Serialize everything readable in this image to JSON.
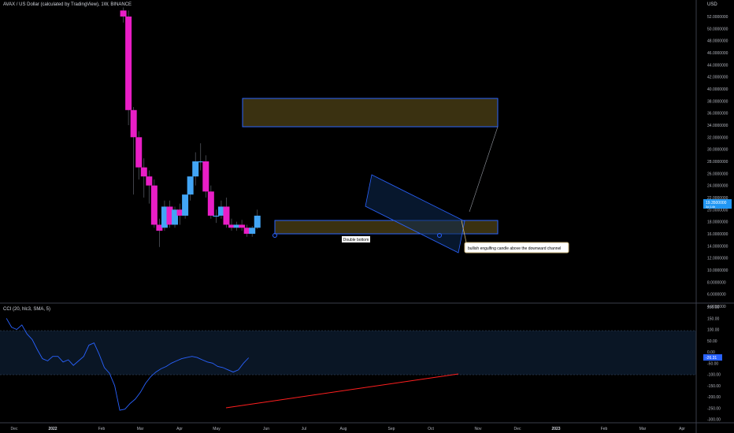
{
  "header": {
    "title": "AVAX / US Dollar (calculated by TradingView), 1W, BINANCE",
    "unit": "USD"
  },
  "indicator": {
    "title": "CCI (20, hlc3, SMA, 5)"
  },
  "price_axis": {
    "ticks": [
      "52.0000000",
      "50.0000000",
      "48.0000000",
      "46.0000000",
      "44.0000000",
      "42.0000000",
      "40.0000000",
      "38.0000000",
      "36.0000000",
      "34.0000000",
      "32.0000000",
      "30.0000000",
      "28.0000000",
      "26.0000000",
      "24.0000000",
      "22.0000000",
      "20.0000000",
      "18.0000000",
      "16.0000000",
      "14.0000000",
      "12.0000000",
      "10.0000000",
      "8.0000000",
      "6.0000000",
      "4.0000000"
    ],
    "last_price": "19.3500000",
    "last_price_sub": "3d 14h"
  },
  "cci_axis": {
    "ticks": [
      "200.00",
      "150.00",
      "100.00",
      "50.00",
      "0.00",
      "-50.00",
      "-100.00",
      "-150.00",
      "-200.00",
      "-250.00",
      "-300.00"
    ],
    "current": "-26.31"
  },
  "time_axis": {
    "labels": [
      "Dec",
      "2022",
      "Feb",
      "Mar",
      "Apr",
      "May",
      "Jun",
      "Jul",
      "Aug",
      "Sep",
      "Oct",
      "Nov",
      "Dec",
      "2023",
      "Feb",
      "Mar",
      "Apr"
    ]
  },
  "annotations": {
    "double_bottom": "Double bottom",
    "engulfing_note": "bullish engulfing candle above the downward channel"
  },
  "colors": {
    "bull": "#42a5f5",
    "bear": "#e91ec6",
    "zone_fill": "#3a3111",
    "zone_border": "#2962ff",
    "cci_line": "#2962ff",
    "divergence": "#ff1f1f",
    "price_badge": "#2196f3"
  },
  "chart_data": [
    {
      "type": "candlestick",
      "title": "AVAX / US Dollar (calculated by TradingView), 1W, BINANCE",
      "ylabel": "USD",
      "y_scale": "linear",
      "ylim": [
        2.5,
        53.0
      ],
      "grid": false,
      "x": [
        "2022-04-25",
        "2022-05-02",
        "2022-05-09",
        "2022-05-16",
        "2022-05-23",
        "2022-05-30",
        "2022-06-06",
        "2022-06-13",
        "2022-06-20",
        "2022-06-27",
        "2022-07-04",
        "2022-07-11",
        "2022-07-18",
        "2022-07-25",
        "2022-08-01",
        "2022-08-08",
        "2022-08-15",
        "2022-08-22",
        "2022-08-29",
        "2022-09-05",
        "2022-09-12",
        "2022-09-19",
        "2022-09-26",
        "2022-10-03",
        "2022-10-10",
        "2022-10-17",
        "2022-10-24"
      ],
      "candles": [
        {
          "o": 53.0,
          "h": 53.5,
          "c": 52.0,
          "l": 51.0
        },
        {
          "o": 52.0,
          "h": 53.0,
          "c": 36.5,
          "l": 34.0
        },
        {
          "o": 36.5,
          "h": 37.0,
          "c": 32.0,
          "l": 22.5
        },
        {
          "o": 32.0,
          "h": 33.0,
          "c": 27.0,
          "l": 25.0
        },
        {
          "o": 27.0,
          "h": 28.5,
          "c": 25.5,
          "l": 22.0
        },
        {
          "o": 25.5,
          "h": 26.5,
          "c": 24.0,
          "l": 21.0
        },
        {
          "o": 24.0,
          "h": 25.0,
          "c": 17.5,
          "l": 17.0
        },
        {
          "o": 17.5,
          "h": 18.5,
          "c": 16.5,
          "l": 13.8
        },
        {
          "o": 17.0,
          "h": 21.5,
          "c": 20.5,
          "l": 16.5
        },
        {
          "o": 20.5,
          "h": 21.5,
          "c": 17.5,
          "l": 17.0
        },
        {
          "o": 17.5,
          "h": 20.5,
          "c": 20.0,
          "l": 17.0
        },
        {
          "o": 20.0,
          "h": 21.0,
          "c": 19.0,
          "l": 17.5
        },
        {
          "o": 19.0,
          "h": 22.5,
          "c": 22.5,
          "l": 18.5
        },
        {
          "o": 22.5,
          "h": 25.5,
          "c": 25.5,
          "l": 21.5
        },
        {
          "o": 25.5,
          "h": 29.5,
          "c": 28.0,
          "l": 24.0
        },
        {
          "o": 28.0,
          "h": 31.0,
          "c": 28.0,
          "l": 26.5
        },
        {
          "o": 28.0,
          "h": 29.0,
          "c": 23.0,
          "l": 22.0
        },
        {
          "o": 23.0,
          "h": 24.0,
          "c": 19.0,
          "l": 18.5
        },
        {
          "o": 19.0,
          "h": 20.0,
          "c": 19.0,
          "l": 17.8
        },
        {
          "o": 19.0,
          "h": 21.5,
          "c": 20.5,
          "l": 18.5
        },
        {
          "o": 20.5,
          "h": 22.0,
          "c": 17.5,
          "l": 17.0
        },
        {
          "o": 17.5,
          "h": 18.5,
          "c": 17.0,
          "l": 16.5
        },
        {
          "o": 17.0,
          "h": 18.0,
          "c": 17.5,
          "l": 16.5
        },
        {
          "o": 17.5,
          "h": 18.3,
          "c": 17.0,
          "l": 16.5
        },
        {
          "o": 17.0,
          "h": 17.5,
          "c": 16.0,
          "l": 15.5
        },
        {
          "o": 16.0,
          "h": 17.3,
          "c": 17.0,
          "l": 15.5
        },
        {
          "o": 17.0,
          "h": 20.0,
          "c": 19.0,
          "l": 16.8
        }
      ]
    },
    {
      "type": "line",
      "title": "CCI (20, hlc3, SMA, 5)",
      "ylim": [
        -310,
        210
      ],
      "x": [
        "2021-11-29",
        "2021-12-06",
        "2021-12-13",
        "2021-12-20",
        "2021-12-27",
        "2022-01-03",
        "2022-01-10",
        "2022-01-17",
        "2022-01-24",
        "2022-01-31",
        "2022-02-07",
        "2022-02-14",
        "2022-02-21",
        "2022-02-28",
        "2022-03-07",
        "2022-03-14",
        "2022-03-21",
        "2022-03-28",
        "2022-04-04",
        "2022-04-11",
        "2022-04-18",
        "2022-04-25",
        "2022-05-02",
        "2022-05-09",
        "2022-05-16",
        "2022-05-23",
        "2022-05-30",
        "2022-06-06",
        "2022-06-13",
        "2022-06-20",
        "2022-06-27",
        "2022-07-04",
        "2022-07-11",
        "2022-07-18",
        "2022-07-25",
        "2022-08-01",
        "2022-08-08",
        "2022-08-15",
        "2022-08-22",
        "2022-08-29",
        "2022-09-05",
        "2022-09-12",
        "2022-09-19",
        "2022-09-26",
        "2022-10-03",
        "2022-10-10",
        "2022-10-17",
        "2022-10-24"
      ],
      "series": [
        {
          "values": [
            150,
            110,
            100,
            120,
            80,
            55,
            10,
            -30,
            -40,
            -20,
            -20,
            -45,
            -35,
            -60,
            -40,
            -20,
            30,
            40,
            -10,
            -70,
            -95,
            -150,
            -260,
            -255,
            -230,
            -210,
            -180,
            -140,
            -110,
            -90,
            -75,
            -65,
            -50,
            -40,
            -30,
            -25,
            -20,
            -25,
            -35,
            -45,
            -50,
            -65,
            -70,
            -80,
            -90,
            -80,
            -50,
            -26.31
          ]
        }
      ]
    }
  ]
}
